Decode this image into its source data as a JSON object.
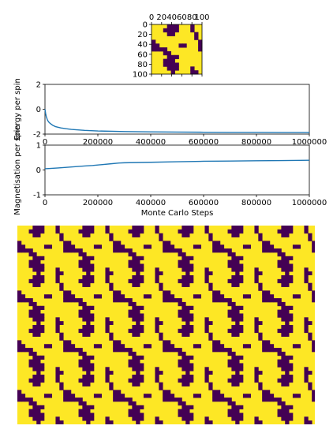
{
  "colors": {
    "spin_up": "#fde725",
    "spin_down": "#440154",
    "line": "#1f77b4"
  },
  "chart_data": [
    {
      "type": "heatmap",
      "title": "",
      "xlim": [
        0,
        100
      ],
      "ylim": [
        100,
        0
      ],
      "xticks": [
        "0",
        "20",
        "40",
        "60",
        "80",
        "100"
      ],
      "yticks": [
        "0",
        "20",
        "40",
        "60",
        "80",
        "100"
      ],
      "colormap": "viridis",
      "values": [
        -1,
        1
      ],
      "pattern": [
        "1111000111011",
        "1110000111011",
        "1111001111101",
        "1111111111101",
        "0111111111110",
        "0011111001110",
        "0000111111110",
        "1110011111111",
        "1111000111111",
        "1110001111111",
        "1110000111111",
        "1111000111011",
        "1111101111001"
      ]
    },
    {
      "type": "line",
      "xlabel": "",
      "ylabel": "Energy per spin",
      "xlim": [
        0,
        1000000
      ],
      "ylim": [
        -2,
        2
      ],
      "xticks": [
        "0",
        "200000",
        "400000",
        "600000",
        "800000",
        "1000000"
      ],
      "yticks": [
        "2",
        "0",
        "-2"
      ],
      "x": [
        0,
        2500,
        5000,
        10000,
        15000,
        20000,
        30000,
        40000,
        60000,
        80000,
        100000,
        150000,
        200000,
        300000,
        400000,
        500000,
        600000,
        700000,
        800000,
        900000,
        1000000
      ],
      "y": [
        0.0,
        -0.35,
        -0.6,
        -0.9,
        -1.05,
        -1.15,
        -1.3,
        -1.4,
        -1.5,
        -1.57,
        -1.62,
        -1.7,
        -1.75,
        -1.8,
        -1.82,
        -1.84,
        -1.85,
        -1.86,
        -1.86,
        -1.87,
        -1.87
      ]
    },
    {
      "type": "line",
      "xlabel": "Monte Carlo Steps",
      "ylabel": "Magnetisation per spin",
      "xlim": [
        0,
        1000000
      ],
      "ylim": [
        -1,
        1
      ],
      "xticks": [
        "0",
        "200000",
        "400000",
        "600000",
        "800000",
        "1000000"
      ],
      "yticks": [
        "1",
        "0",
        "-1"
      ],
      "x": [
        0,
        20000,
        50000,
        100000,
        150000,
        180000,
        200000,
        250000,
        280000,
        300000,
        400000,
        500000,
        600000,
        700000,
        800000,
        900000,
        1000000
      ],
      "y": [
        0.05,
        0.06,
        0.08,
        0.12,
        0.16,
        0.18,
        0.2,
        0.25,
        0.28,
        0.29,
        0.31,
        0.33,
        0.35,
        0.36,
        0.37,
        0.38,
        0.39
      ]
    },
    {
      "type": "heatmap",
      "title": "",
      "description_of_tiling": "periodic tiling of the same spin configuration",
      "tiles_x": 6,
      "tiles_y": 4,
      "colormap": "viridis",
      "values": [
        -1,
        1
      ]
    }
  ]
}
